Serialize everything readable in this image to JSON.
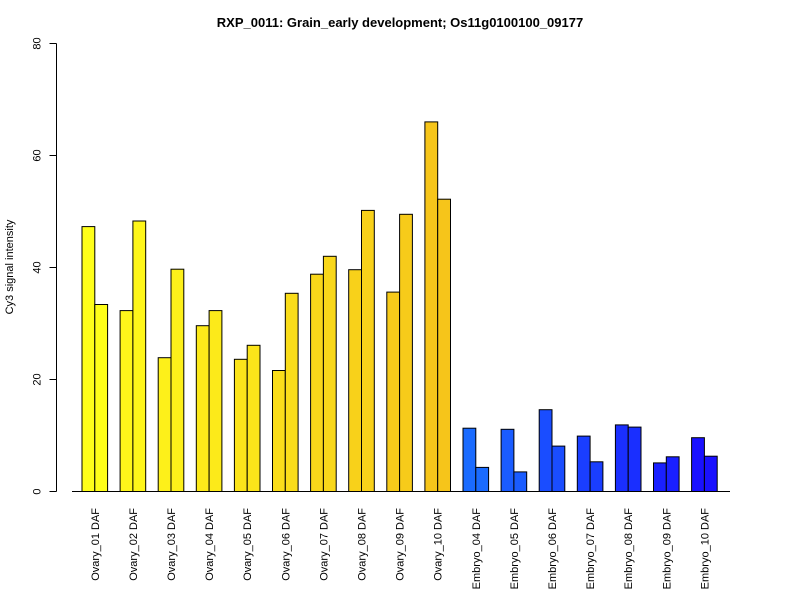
{
  "chart_data": {
    "type": "bar",
    "title": "RXP_0011: Grain_early development; Os11g0100100_09177",
    "xlabel": "",
    "ylabel": "Cy3 signal intensity",
    "ylim": [
      0,
      80
    ],
    "yticks": [
      "0",
      "20",
      "40",
      "60",
      "80"
    ],
    "grid": false,
    "legend": "none",
    "categories": [
      "Ovary_01 DAF",
      "Ovary_02 DAF",
      "Ovary_03 DAF",
      "Ovary_04 DAF",
      "Ovary_05 DAF",
      "Ovary_06 DAF",
      "Ovary_07 DAF",
      "Ovary_08 DAF",
      "Ovary_09 DAF",
      "Ovary_10 DAF",
      "Embryo_04 DAF",
      "Embryo_05 DAF",
      "Embryo_06 DAF",
      "Embryo_07 DAF",
      "Embryo_08 DAF",
      "Embryo_09 DAF",
      "Embryo_10 DAF"
    ],
    "series": [
      {
        "values": [
          47.3,
          32.3,
          23.9,
          29.6,
          23.6,
          21.6,
          38.8,
          39.6,
          35.6,
          66.0,
          11.3,
          11.1,
          14.6,
          9.9,
          11.9,
          5.1,
          9.6
        ]
      },
      {
        "values": [
          33.4,
          48.3,
          39.7,
          32.3,
          26.1,
          35.4,
          42.0,
          50.2,
          49.5,
          52.2,
          4.3,
          3.5,
          8.1,
          5.3,
          11.5,
          6.2,
          6.3
        ]
      }
    ],
    "colors": [
      "#ffff1a",
      "#fef61a",
      "#fdf01a",
      "#fcea1a",
      "#fbe41a",
      "#fadd1a",
      "#f9d71a",
      "#f8d11a",
      "#f7cb1a",
      "#f6c51a",
      "#1a6bff",
      "#1a5cff",
      "#1a4dff",
      "#1a3eff",
      "#1a2fff",
      "#1a20ff",
      "#1a11ff"
    ]
  }
}
